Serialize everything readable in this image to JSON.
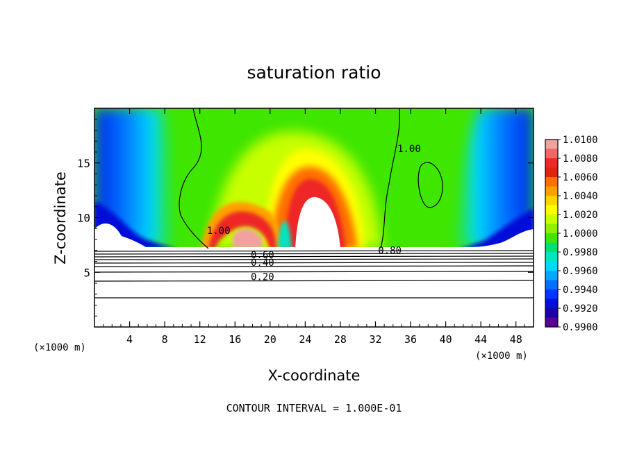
{
  "chart_data": {
    "type": "heatmap",
    "title": "saturation ratio",
    "xlabel": "X-coordinate",
    "ylabel": "Z-coordinate",
    "x_unit_left": "(×1000 m)",
    "x_unit_right": "(×1000 m)",
    "xlim": [
      0,
      50
    ],
    "ylim": [
      0,
      20
    ],
    "x_ticks": [
      "4",
      "8",
      "12",
      "16",
      "20",
      "24",
      "28",
      "32",
      "36",
      "40",
      "44",
      "48"
    ],
    "y_ticks": [
      "5",
      "10",
      "15"
    ],
    "footer": "CONTOUR INTERVAL = 1.000E-01",
    "colorbar": {
      "labels": [
        "1.0100",
        "1.0080",
        "1.0060",
        "1.0040",
        "1.0020",
        "1.0000",
        "0.9980",
        "0.9960",
        "0.9940",
        "0.9920",
        "0.9900"
      ],
      "colors": [
        "#f2a0a0",
        "#ef6767",
        "#ee2727",
        "#e2240f",
        "#ff6e00",
        "#ffa000",
        "#ffd400",
        "#ffff00",
        "#c8ff00",
        "#8cf000",
        "#3ee600",
        "#00e070",
        "#00e6c0",
        "#00d8ff",
        "#00a8ff",
        "#0070ff",
        "#0036ff",
        "#0010d8",
        "#1a00a8",
        "#5a0096"
      ]
    },
    "contour_labels": [
      {
        "text": "1.00",
        "x": 12.8,
        "y": 8.5
      },
      {
        "text": "1.00",
        "x": 34.5,
        "y": 16.0
      },
      {
        "text": "0.80",
        "x": 32.3,
        "y": 6.7
      },
      {
        "text": "0.60",
        "x": 17.8,
        "y": 6.3
      },
      {
        "text": "0.40",
        "x": 17.8,
        "y": 5.6
      },
      {
        "text": "0.20",
        "x": 17.8,
        "y": 4.3
      }
    ],
    "field_sketch": {
      "saturated_plumes": [
        {
          "name": "left-arch",
          "x_range": [
            13,
            21
          ],
          "peak_z": 10.5
        },
        {
          "name": "central-dome",
          "x_range": [
            21,
            32
          ],
          "peak_z": 15.5
        }
      ],
      "subsaturated_flanks": [
        {
          "side": "left",
          "x_range": [
            0,
            10
          ],
          "min_value": 0.99
        },
        {
          "side": "right",
          "x_range": [
            40,
            50
          ],
          "min_value": 0.99
        }
      ],
      "below_cloud_base_z": 7.3
    }
  }
}
